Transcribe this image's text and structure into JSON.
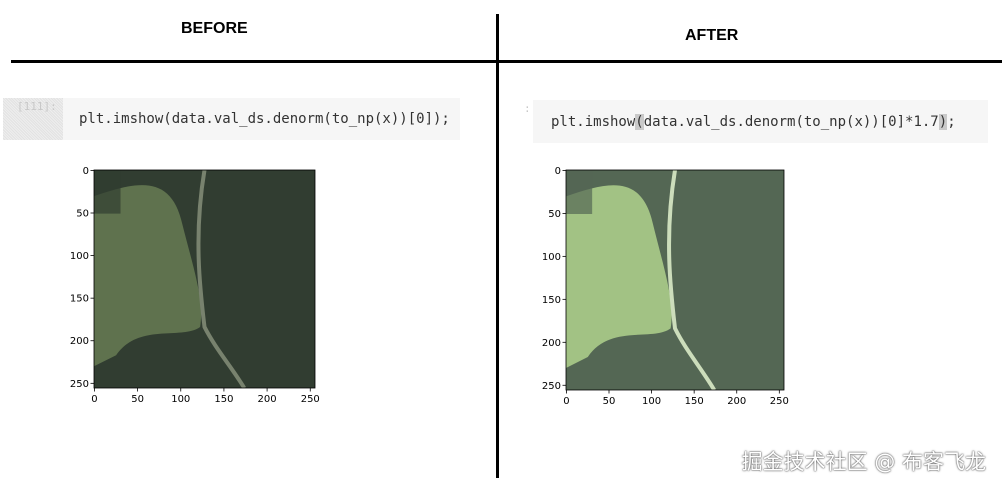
{
  "headers": {
    "before": "BEFORE",
    "after": "AFTER"
  },
  "before": {
    "prompt": "[111]:",
    "code": "plt.imshow(data.val_ds.denorm(to_np(x))[0]);",
    "image": {
      "brightness": 1.0,
      "x_ticks": [
        "0",
        "50",
        "100",
        "150",
        "200",
        "250"
      ],
      "y_ticks": [
        "0",
        "50",
        "100",
        "150",
        "200",
        "250"
      ]
    }
  },
  "after": {
    "prompt": ":",
    "code_parts": [
      "plt.imshow",
      "(",
      "data.val_ds.denorm(to_np(x))[0]*1.7",
      ")",
      ";"
    ],
    "image": {
      "brightness": 1.7,
      "x_ticks": [
        "0",
        "50",
        "100",
        "150",
        "200",
        "250"
      ],
      "y_ticks": [
        "0",
        "50",
        "100",
        "150",
        "200",
        "250"
      ]
    }
  },
  "watermark": "掘金技术社区 @ 布客飞龙"
}
